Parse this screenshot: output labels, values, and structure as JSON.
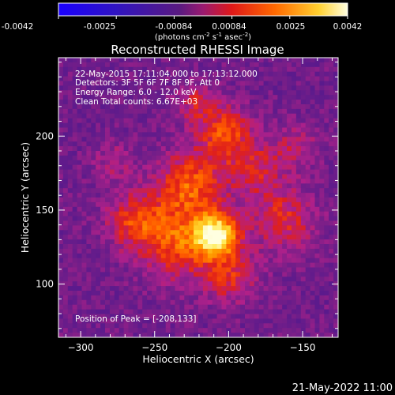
{
  "colorbar": {
    "ticks": [
      "-0.0042",
      "-0.0025",
      "-0.00084",
      "0.00084",
      "0.0025",
      "0.0042"
    ],
    "units_main": "(photons cm",
    "units_exp1": "-2",
    "units_mid": " s",
    "units_exp2": "-1",
    "units_end": " asec",
    "units_exp3": "-2",
    "units_close": ")"
  },
  "title": "Reconstructed RHESSI Image",
  "info": {
    "line1": "22-May-2015 17:11:04.000 to 17:13:12.000",
    "line2": "Detectors: 3F 5F 6F 7F 8F 9F, Att 0",
    "line3": "Energy Range: 6.0 - 12.0 keV",
    "line4": "Clean    Total counts: 6.67E+03"
  },
  "peak_text": "Position of Peak = [-208,133]",
  "chart_data": {
    "type": "heatmap",
    "xlabel": "Heliocentric X (arcsec)",
    "ylabel": "Heliocentric Y (arcsec)",
    "xlim": [
      -315,
      -126
    ],
    "ylim": [
      64,
      253
    ],
    "xticks": [
      -300,
      -250,
      -200,
      -150
    ],
    "xtick_labels": [
      "−300",
      "−250",
      "−200",
      "−150"
    ],
    "yticks": [
      100,
      150,
      200
    ],
    "ytick_labels": [
      "100",
      "150",
      "200"
    ],
    "peak": [
      -208,
      133
    ],
    "colorscale": [
      "#1a00ff",
      "#3a14c8",
      "#5a1a8c",
      "#7a1f88",
      "#b0208a",
      "#e0201a",
      "#ff5a00",
      "#ffa000",
      "#ffe840",
      "#ffffe0"
    ]
  },
  "footer_date": "21-May-2022 11:00"
}
